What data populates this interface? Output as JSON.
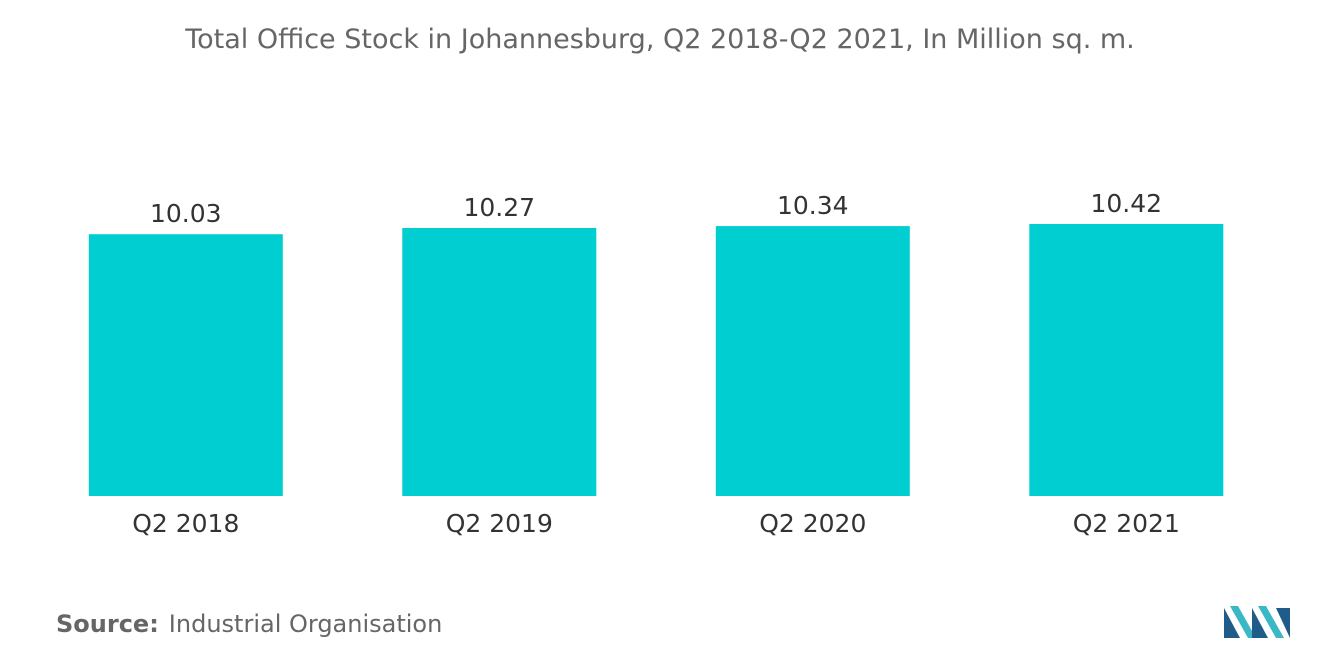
{
  "title": "Total Office Stock in Johannesburg, Q2 2018-Q2 2021, In Million sq. m.",
  "footer": {
    "source_label": "Source:",
    "source_text": "Industrial Organisation"
  },
  "colors": {
    "bar": "#00CED1",
    "logo_dark": "#1F5C8A",
    "logo_light": "#3BB8C6"
  },
  "logo": {
    "icon": "brand-logo-icon"
  },
  "chart_data": {
    "type": "bar",
    "categories": [
      "Q2 2018",
      "Q2 2019",
      "Q2 2020",
      "Q2 2021"
    ],
    "values": [
      10.03,
      10.27,
      10.34,
      10.42
    ],
    "value_labels": [
      "10.03",
      "10.27",
      "10.34",
      "10.42"
    ],
    "title": "Total Office Stock in Johannesburg, Q2 2018-Q2 2021, In Million sq. m.",
    "xlabel": "",
    "ylabel": "",
    "ylim": [
      0,
      10.8
    ],
    "grid": false,
    "legend": "none"
  }
}
